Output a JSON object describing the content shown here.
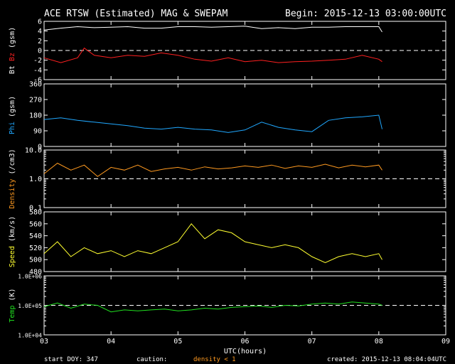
{
  "header": {
    "title": "ACE RTSW (Estimated) MAG & SWEPAM",
    "begin": "Begin: 2015-12-13 03:00:00UTC"
  },
  "footer": {
    "start_doy": "start DOY: 347",
    "caution": "caution:",
    "density_note": "density < 1",
    "created": "created: 2015-12-13 08:04:04UTC"
  },
  "colors": {
    "background": "#000000",
    "axes": "#ffffff",
    "bt": "#ffffff",
    "bz": "#ff2020",
    "phi": "#20a8ff",
    "density": "#ff9a20",
    "speed": "#ffff30",
    "temp": "#20e020"
  },
  "chart_data": [
    {
      "type": "line",
      "panel": "mag-bt-bz",
      "ylabel_parts": [
        "Bt",
        "Bz",
        "(gsm)"
      ],
      "ylim": [
        -6,
        6
      ],
      "yticks": [
        "6",
        "4",
        "2",
        "0",
        "-2",
        "-4",
        "-6"
      ],
      "reference_line": 0,
      "series": [
        {
          "name": "Bt",
          "color_key": "bt",
          "x": [
            3.0,
            3.25,
            3.5,
            3.75,
            4.0,
            4.25,
            4.5,
            4.75,
            5.0,
            5.25,
            5.5,
            5.75,
            6.0,
            6.25,
            6.5,
            6.75,
            7.0,
            7.25,
            7.5,
            7.75,
            8.0,
            8.05
          ],
          "y": [
            4.2,
            4.6,
            4.9,
            4.7,
            4.8,
            4.9,
            4.6,
            4.6,
            4.9,
            4.9,
            4.8,
            4.9,
            5.0,
            4.5,
            4.7,
            4.5,
            4.8,
            4.8,
            4.9,
            4.9,
            4.9,
            3.8
          ]
        },
        {
          "name": "Bz",
          "color_key": "bz",
          "x": [
            3.0,
            3.25,
            3.5,
            3.6,
            3.75,
            4.0,
            4.25,
            4.5,
            4.75,
            5.0,
            5.25,
            5.5,
            5.75,
            6.0,
            6.25,
            6.5,
            6.75,
            7.0,
            7.25,
            7.5,
            7.75,
            8.0,
            8.05
          ],
          "y": [
            -1.5,
            -2.5,
            -1.5,
            0.5,
            -1.0,
            -1.5,
            -1.0,
            -1.2,
            -0.5,
            -1.0,
            -1.8,
            -2.2,
            -1.5,
            -2.3,
            -2.0,
            -2.5,
            -2.3,
            -2.2,
            -2.0,
            -1.8,
            -1.0,
            -1.8,
            -2.3
          ]
        }
      ]
    },
    {
      "type": "line",
      "panel": "phi",
      "ylabel_parts": [
        "Phi",
        "(gsm)"
      ],
      "ylim": [
        0,
        360
      ],
      "yticks": [
        "360",
        "270",
        "180",
        "90",
        "0"
      ],
      "series": [
        {
          "name": "Phi",
          "color_key": "phi",
          "x": [
            3.0,
            3.25,
            3.5,
            3.75,
            4.0,
            4.25,
            4.5,
            4.75,
            5.0,
            5.25,
            5.5,
            5.75,
            6.0,
            6.25,
            6.5,
            6.75,
            7.0,
            7.25,
            7.5,
            7.75,
            8.0,
            8.05
          ],
          "y": [
            155,
            165,
            150,
            140,
            130,
            120,
            105,
            100,
            110,
            100,
            95,
            80,
            95,
            140,
            110,
            95,
            85,
            150,
            165,
            170,
            180,
            100
          ]
        }
      ]
    },
    {
      "type": "line",
      "panel": "density",
      "ylabel_parts": [
        "Density",
        "(/cm3)"
      ],
      "yscale": "log",
      "ylim": [
        0.1,
        10.0
      ],
      "yticks": [
        "10.0",
        "1.0",
        "0.1"
      ],
      "reference_line": 1.0,
      "series": [
        {
          "name": "Density",
          "color_key": "density",
          "x": [
            3.0,
            3.2,
            3.4,
            3.6,
            3.8,
            4.0,
            4.2,
            4.4,
            4.6,
            4.8,
            5.0,
            5.2,
            5.4,
            5.6,
            5.8,
            6.0,
            6.2,
            6.4,
            6.6,
            6.8,
            7.0,
            7.2,
            7.4,
            7.6,
            7.8,
            8.0,
            8.05
          ],
          "y": [
            1.5,
            3.5,
            2.0,
            3.0,
            1.2,
            2.5,
            2.0,
            3.0,
            1.8,
            2.2,
            2.5,
            2.0,
            2.6,
            2.2,
            2.4,
            2.8,
            2.5,
            3.0,
            2.3,
            2.8,
            2.5,
            3.2,
            2.4,
            3.0,
            2.6,
            3.0,
            2.0
          ]
        }
      ]
    },
    {
      "type": "line",
      "panel": "speed",
      "ylabel_parts": [
        "Speed",
        "(km/s)"
      ],
      "ylim": [
        480,
        580
      ],
      "yticks": [
        "580",
        "560",
        "540",
        "520",
        "500",
        "480"
      ],
      "series": [
        {
          "name": "Speed",
          "color_key": "speed",
          "x": [
            3.0,
            3.2,
            3.4,
            3.6,
            3.8,
            4.0,
            4.2,
            4.4,
            4.6,
            4.8,
            5.0,
            5.2,
            5.4,
            5.6,
            5.8,
            6.0,
            6.2,
            6.4,
            6.6,
            6.8,
            7.0,
            7.2,
            7.4,
            7.6,
            7.8,
            8.0,
            8.05
          ],
          "y": [
            510,
            530,
            505,
            520,
            510,
            515,
            505,
            515,
            510,
            520,
            530,
            560,
            535,
            550,
            545,
            530,
            525,
            520,
            525,
            520,
            505,
            495,
            505,
            510,
            505,
            510,
            500
          ]
        }
      ]
    },
    {
      "type": "line",
      "panel": "temp",
      "ylabel_parts": [
        "Temp",
        "(K)"
      ],
      "yscale": "log",
      "ylim": [
        10000,
        1000000
      ],
      "yticks": [
        "1.0E+06",
        "1.0E+05",
        "1.0E+04"
      ],
      "reference_line": 100000,
      "series": [
        {
          "name": "Temp",
          "color_key": "temp",
          "x": [
            3.0,
            3.2,
            3.4,
            3.6,
            3.8,
            4.0,
            4.2,
            4.4,
            4.6,
            4.8,
            5.0,
            5.2,
            5.4,
            5.6,
            5.8,
            6.0,
            6.2,
            6.4,
            6.6,
            6.8,
            7.0,
            7.2,
            7.4,
            7.6,
            7.8,
            8.0,
            8.05
          ],
          "y": [
            90000,
            120000,
            80000,
            110000,
            100000,
            60000,
            70000,
            65000,
            70000,
            75000,
            65000,
            70000,
            80000,
            75000,
            85000,
            90000,
            95000,
            85000,
            100000,
            95000,
            110000,
            120000,
            110000,
            130000,
            120000,
            110000,
            100000
          ]
        }
      ]
    }
  ],
  "x_axis": {
    "xlim": [
      3,
      9
    ],
    "ticks": [
      "03",
      "04",
      "05",
      "06",
      "07",
      "08",
      "09"
    ],
    "label": "UTC(hours)"
  }
}
